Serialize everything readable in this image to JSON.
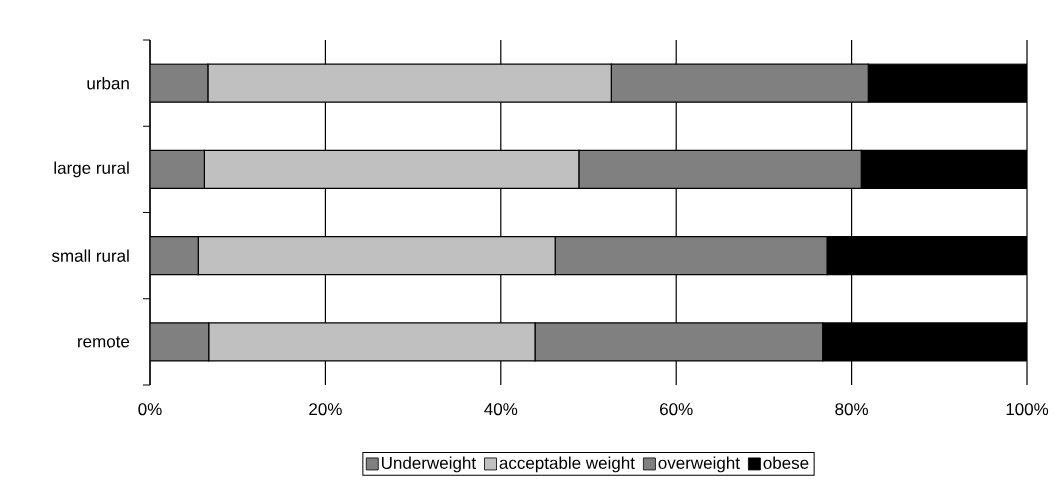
{
  "chart_data": {
    "type": "bar",
    "orientation": "horizontal",
    "stacked": true,
    "categories": [
      "urban",
      "large rural",
      "small rural",
      "remote"
    ],
    "series": [
      {
        "name": "Underweight",
        "color": "#808080",
        "values": [
          6.6,
          6.2,
          5.5,
          6.7
        ]
      },
      {
        "name": "acceptable weight",
        "color": "#c0c0c0",
        "values": [
          46.0,
          42.7,
          40.7,
          37.2
        ]
      },
      {
        "name": "overweight",
        "color": "#808080",
        "values": [
          29.3,
          32.2,
          31.0,
          32.8
        ]
      },
      {
        "name": "obese",
        "color": "#000000",
        "values": [
          18.1,
          18.9,
          22.8,
          23.3
        ]
      }
    ],
    "xlim": [
      0,
      100
    ],
    "xticks": [
      {
        "value": 0,
        "label": "0%"
      },
      {
        "value": 20,
        "label": "20%"
      },
      {
        "value": 40,
        "label": "40%"
      },
      {
        "value": 60,
        "label": "60%"
      },
      {
        "value": 80,
        "label": "80%"
      },
      {
        "value": 100,
        "label": "100%"
      }
    ],
    "grid": "x",
    "legend": "bottom"
  }
}
